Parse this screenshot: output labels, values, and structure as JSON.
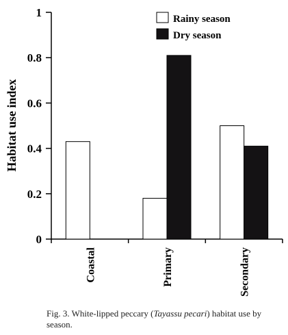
{
  "chart_data": {
    "type": "bar",
    "categories": [
      "Coastal",
      "Primary",
      "Secondary"
    ],
    "series": [
      {
        "name": "Rainy season",
        "values": [
          0.43,
          0.18,
          0.5
        ],
        "color": "#ffffff"
      },
      {
        "name": "Dry season",
        "values": [
          0.0,
          0.81,
          0.41
        ],
        "color": "#141214"
      }
    ],
    "ylabel": "Habitat use index",
    "xlabel": "",
    "ylim": [
      0,
      1
    ],
    "yticks": [
      "0",
      "0.2",
      "0.4",
      "0.6",
      "0.8",
      "1"
    ],
    "legend_position": "top-right"
  },
  "caption": {
    "prefix": "Fig. 3. White-lipped peccary (",
    "species": "Tayassu pecari",
    "suffix": ") habitat use by season."
  }
}
